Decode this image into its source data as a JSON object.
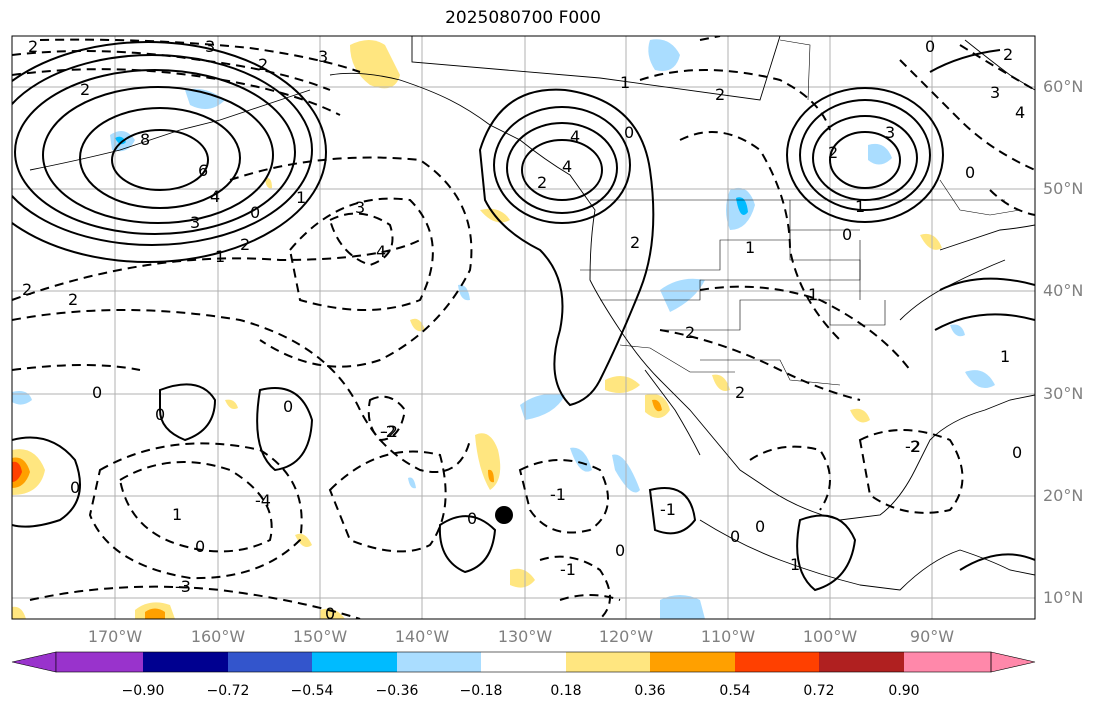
{
  "title": "2025080700 F000",
  "latitude_labels": [
    "60°N",
    "50°N",
    "40°N",
    "30°N",
    "20°N",
    "10°N"
  ],
  "longitude_labels": [
    "170°W",
    "160°W",
    "150°W",
    "140°W",
    "130°W",
    "120°W",
    "110°W",
    "100°W",
    "90°W"
  ],
  "colorbar": {
    "tick_labels": [
      "−0.90",
      "−0.72",
      "−0.54",
      "−0.36",
      "−0.18",
      "0.18",
      "0.36",
      "0.54",
      "0.72",
      "0.90"
    ],
    "colors": [
      "#9933cc",
      "#000090",
      "#3355cc",
      "#00bbff",
      "#aaddff",
      "#ffffff",
      "#ffe680",
      "#ffa000",
      "#ff4000",
      "#b02020",
      "#ff88aa"
    ]
  },
  "contour_labels": [
    "2",
    "3",
    "2",
    "3",
    "2",
    "8",
    "6",
    "4",
    "3",
    "2",
    "1",
    "0",
    "3",
    "4",
    "2",
    "1",
    "0",
    "2",
    "-2",
    "1",
    "0",
    "4",
    "2",
    "4",
    "0",
    "1",
    "2",
    "3",
    "0",
    "1",
    "2",
    "2",
    "0",
    "0",
    "3",
    "4",
    "1",
    "0",
    "1",
    "1",
    "2",
    "2",
    "2",
    "0",
    "0",
    "-2",
    "0",
    "-4",
    "-1",
    "0",
    "0",
    "-1",
    "0",
    "-1",
    "1",
    "0",
    "-2",
    "-3",
    "0",
    "2"
  ],
  "marker": "storm-center"
}
